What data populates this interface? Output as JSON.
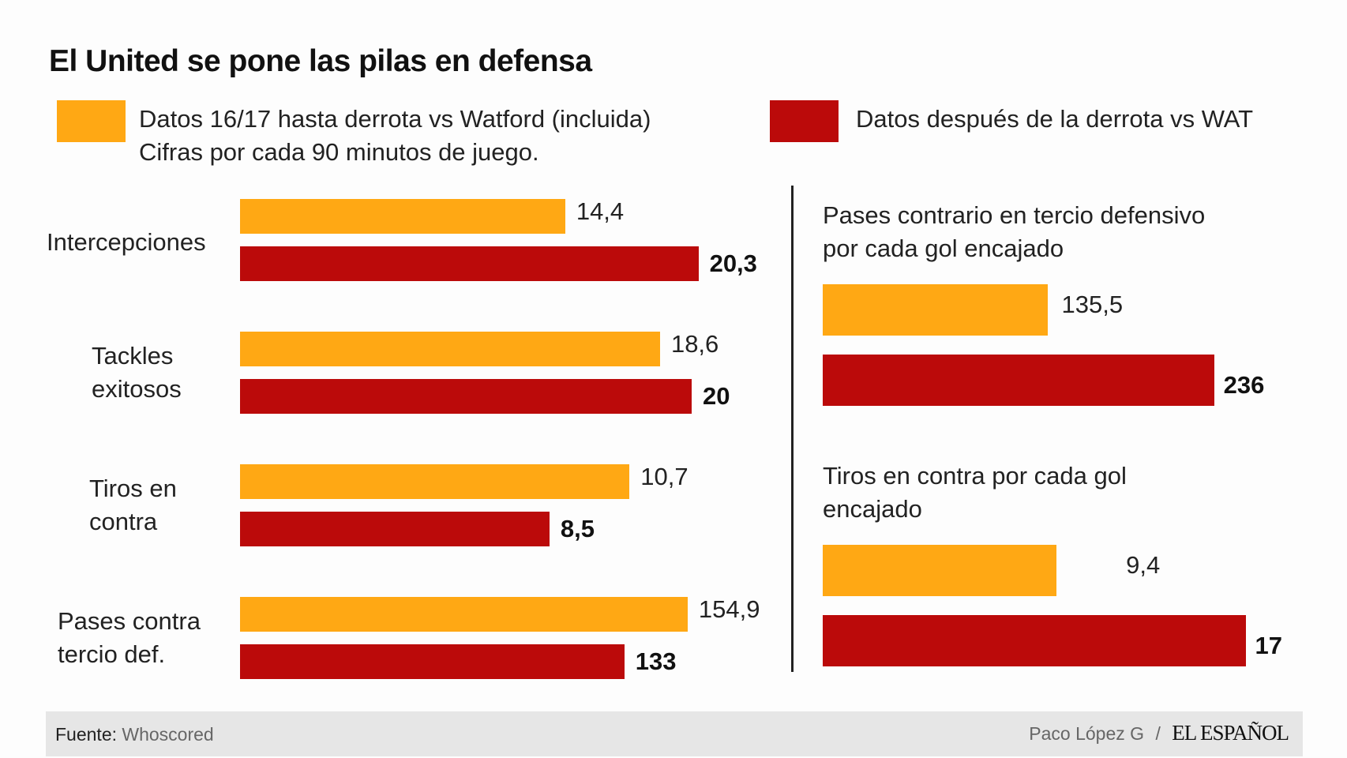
{
  "colors": {
    "before": "#FFA814",
    "after": "#BB0A0A",
    "footer_bg": "#E6E6E6"
  },
  "chart_data": [
    {
      "type": "bar",
      "orientation": "horizontal",
      "title": "El United se pone las pilas en defensa",
      "legend": [
        {
          "label": "Datos 16/17 hasta derrota vs Watford (incluida)",
          "color": "#FFA814"
        },
        {
          "label": "Datos después de la derrota vs WAT",
          "color": "#BB0A0A"
        }
      ],
      "subtitle": "Cifras por cada 90 minutos de juego.",
      "categories": [
        {
          "lines": [
            "Intercepciones"
          ],
          "before": 14.4,
          "after": 20.3,
          "before_label": "14,4",
          "after_label": "20,3"
        },
        {
          "lines": [
            "Tackles",
            "exitosos"
          ],
          "before": 18.6,
          "after": 20,
          "before_label": "18,6",
          "after_label": "20"
        },
        {
          "lines": [
            "Tiros en",
            "contra"
          ],
          "before": 10.7,
          "after": 8.5,
          "before_label": "10,7",
          "after_label": "8,5"
        },
        {
          "lines": [
            "Pases contra",
            "tercio def."
          ],
          "before": 154.9,
          "after": 133,
          "before_label": "154,9",
          "after_label": "133"
        }
      ]
    },
    {
      "type": "bar",
      "orientation": "horizontal",
      "panels": [
        {
          "title_lines": [
            "Pases contrario en tercio defensivo",
            "por cada gol encajado"
          ],
          "before": 135.5,
          "after": 236,
          "before_label": "135,5",
          "after_label": "236"
        },
        {
          "title_lines": [
            "Tiros en contra por cada gol",
            "encajado"
          ],
          "before": 9.4,
          "after": 17,
          "before_label": "9,4",
          "after_label": "17"
        }
      ]
    }
  ],
  "footer": {
    "source_label": "Fuente:",
    "source": "Whoscored",
    "author": "Paco López G",
    "separator": "/",
    "brand": "EL ESPAÑOL"
  }
}
